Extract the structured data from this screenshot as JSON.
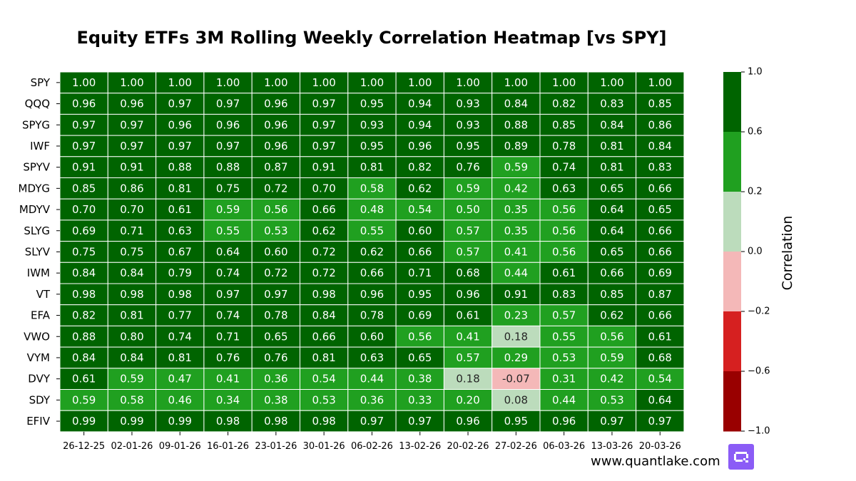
{
  "chart_data": {
    "type": "heatmap",
    "title": "Equity ETFs 3M Rolling Weekly Correlation Heatmap [vs SPY]",
    "rows": [
      "SPY",
      "QQQ",
      "SPYG",
      "IWF",
      "SPYV",
      "MDYG",
      "MDYV",
      "SLYG",
      "SLYV",
      "IWM",
      "VT",
      "EFA",
      "VWO",
      "VYM",
      "DVY",
      "SDY",
      "EFIV"
    ],
    "columns": [
      "26-12-25",
      "02-01-26",
      "09-01-26",
      "16-01-26",
      "23-01-26",
      "30-01-26",
      "06-02-26",
      "13-02-26",
      "20-02-26",
      "27-02-26",
      "06-03-26",
      "13-03-26",
      "20-03-26"
    ],
    "values": [
      [
        "1.00",
        "1.00",
        "1.00",
        "1.00",
        "1.00",
        "1.00",
        "1.00",
        "1.00",
        "1.00",
        "1.00",
        "1.00",
        "1.00",
        "1.00"
      ],
      [
        "0.96",
        "0.96",
        "0.97",
        "0.97",
        "0.96",
        "0.97",
        "0.95",
        "0.94",
        "0.93",
        "0.84",
        "0.82",
        "0.83",
        "0.85"
      ],
      [
        "0.97",
        "0.97",
        "0.96",
        "0.96",
        "0.96",
        "0.97",
        "0.93",
        "0.94",
        "0.93",
        "0.88",
        "0.85",
        "0.84",
        "0.86"
      ],
      [
        "0.97",
        "0.97",
        "0.97",
        "0.97",
        "0.96",
        "0.97",
        "0.95",
        "0.96",
        "0.95",
        "0.89",
        "0.78",
        "0.81",
        "0.84"
      ],
      [
        "0.91",
        "0.91",
        "0.88",
        "0.88",
        "0.87",
        "0.91",
        "0.81",
        "0.82",
        "0.76",
        "0.59",
        "0.74",
        "0.81",
        "0.83"
      ],
      [
        "0.85",
        "0.86",
        "0.81",
        "0.75",
        "0.72",
        "0.70",
        "0.58",
        "0.62",
        "0.59",
        "0.42",
        "0.63",
        "0.65",
        "0.66"
      ],
      [
        "0.70",
        "0.70",
        "0.61",
        "0.59",
        "0.56",
        "0.66",
        "0.48",
        "0.54",
        "0.50",
        "0.35",
        "0.56",
        "0.64",
        "0.65"
      ],
      [
        "0.69",
        "0.71",
        "0.63",
        "0.55",
        "0.53",
        "0.62",
        "0.55",
        "0.60",
        "0.57",
        "0.35",
        "0.56",
        "0.64",
        "0.66"
      ],
      [
        "0.75",
        "0.75",
        "0.67",
        "0.64",
        "0.60",
        "0.72",
        "0.62",
        "0.66",
        "0.57",
        "0.41",
        "0.56",
        "0.65",
        "0.66"
      ],
      [
        "0.84",
        "0.84",
        "0.79",
        "0.74",
        "0.72",
        "0.72",
        "0.66",
        "0.71",
        "0.68",
        "0.44",
        "0.61",
        "0.66",
        "0.69"
      ],
      [
        "0.98",
        "0.98",
        "0.98",
        "0.97",
        "0.97",
        "0.98",
        "0.96",
        "0.95",
        "0.96",
        "0.91",
        "0.83",
        "0.85",
        "0.87"
      ],
      [
        "0.82",
        "0.81",
        "0.77",
        "0.74",
        "0.78",
        "0.84",
        "0.78",
        "0.69",
        "0.61",
        "0.23",
        "0.57",
        "0.62",
        "0.66"
      ],
      [
        "0.88",
        "0.80",
        "0.74",
        "0.71",
        "0.65",
        "0.66",
        "0.60",
        "0.56",
        "0.41",
        "0.18",
        "0.55",
        "0.56",
        "0.61"
      ],
      [
        "0.84",
        "0.84",
        "0.81",
        "0.76",
        "0.76",
        "0.81",
        "0.63",
        "0.65",
        "0.57",
        "0.29",
        "0.53",
        "0.59",
        "0.68"
      ],
      [
        "0.61",
        "0.59",
        "0.47",
        "0.41",
        "0.36",
        "0.54",
        "0.44",
        "0.38",
        "0.18",
        "-0.07",
        "0.31",
        "0.42",
        "0.54"
      ],
      [
        "0.59",
        "0.58",
        "0.46",
        "0.34",
        "0.38",
        "0.53",
        "0.36",
        "0.33",
        "0.20",
        "0.08",
        "0.44",
        "0.53",
        "0.64"
      ],
      [
        "0.99",
        "0.99",
        "0.99",
        "0.98",
        "0.98",
        "0.98",
        "0.97",
        "0.97",
        "0.96",
        "0.95",
        "0.96",
        "0.97",
        "0.97"
      ]
    ],
    "color_scale": {
      "label": "Correlation",
      "range": [
        -1.0,
        1.0
      ],
      "bins": [
        {
          "from": -1.0,
          "to": -0.6,
          "color": "#990000"
        },
        {
          "from": -0.6,
          "to": -0.2,
          "color": "#d62020"
        },
        {
          "from": -0.2,
          "to": 0.0,
          "color": "#f4b8b8"
        },
        {
          "from": 0.0,
          "to": 0.2,
          "color": "#bcdcbc"
        },
        {
          "from": 0.2,
          "to": 0.6,
          "color": "#20a020"
        },
        {
          "from": 0.6,
          "to": 1.0,
          "color": "#006400"
        }
      ],
      "ticks": [
        "1.0",
        "0.6",
        "0.2",
        "0.0",
        "−0.2",
        "−0.6",
        "−1.0"
      ]
    }
  },
  "footer": {
    "website": "www.quantlake.com",
    "logo_icon": "quantlake-logo-icon"
  }
}
